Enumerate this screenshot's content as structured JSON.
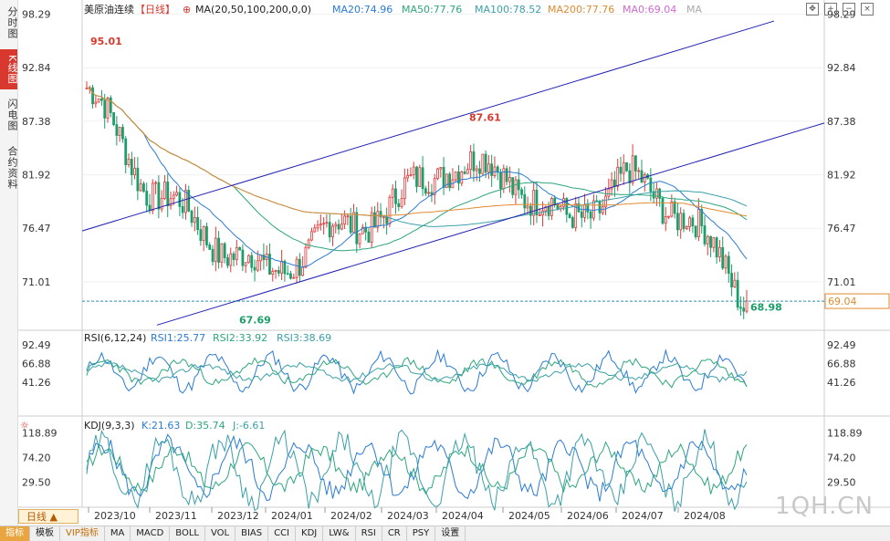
{
  "sidebar": {
    "tabs": [
      {
        "label": "分时图",
        "active": false
      },
      {
        "label": "K线图",
        "active": true
      },
      {
        "label": "闪电图",
        "active": false
      },
      {
        "label": "合约资料",
        "active": false
      }
    ]
  },
  "main_legend": {
    "symbol": "美原油连续",
    "period_tag": "【日线】",
    "ma_params": "MA(20,50,100,200,0,0)",
    "ma20": "MA20:74.96",
    "ma50": "MA50:77.76",
    "ma100": "MA100:78.52",
    "ma200": "MA200:77.76",
    "ma0": "MA0:69.04",
    "ma_extra": "MA"
  },
  "rsi_legend": {
    "title": "RSI(6,12,24)",
    "rsi1": "RSI1:25.77",
    "rsi2": "RSI2:33.92",
    "rsi3": "RSI3:38.69"
  },
  "kdj_legend": {
    "title": "KDJ(9,3,3)",
    "k": "K:21.63",
    "d": "D:35.74",
    "j": "J:-6.61"
  },
  "price_axis": [
    "98.29",
    "92.84",
    "87.38",
    "81.92",
    "76.47",
    "71.01"
  ],
  "rsi_axis": [
    "92.49",
    "66.88",
    "41.26"
  ],
  "kdj_axis": [
    "118.89",
    "74.20",
    "29.50"
  ],
  "last_price_label": "69.04",
  "annotations": {
    "high1": "95.01",
    "high2": "87.61",
    "low1": "67.69",
    "low2": "68.98"
  },
  "x_axis": [
    "2023/10",
    "2023/11",
    "2023/12",
    "2024/01",
    "2024/02",
    "2024/03",
    "2024/04",
    "2024/05",
    "2024/06",
    "2024/07",
    "2024/08"
  ],
  "period_button": "日线",
  "watermark": "1QH.CN",
  "bottom_tabs": [
    "指标",
    "模板",
    "VIP指标",
    "MA",
    "MACD",
    "BOLL",
    "VOL",
    "BIAS",
    "CCI",
    "KDJ",
    "LW&",
    "RSI",
    "CR",
    "PSY",
    "设置"
  ],
  "colors": {
    "up": "#e03a3a",
    "down": "#1a9e6a",
    "ma20": "#2a7bd6",
    "ma50": "#2ca77a",
    "ma100": "#3aa0a8",
    "ma200": "#e08a30",
    "channel": "#1f1fb4",
    "ref_line": "#2a8fb5"
  },
  "chart_data": {
    "type": "candlestick",
    "title": "美原油连续",
    "period": "daily",
    "y_range": [
      67.0,
      99.0
    ],
    "x_range": [
      "2023/09",
      "2024/08"
    ],
    "marked_points": [
      {
        "label": "95.01",
        "date": "2023/09",
        "price": 95.01
      },
      {
        "label": "87.61",
        "date": "2024/04",
        "price": 87.61
      },
      {
        "label": "67.69",
        "date": "2023/12",
        "price": 67.69
      },
      {
        "label": "68.98",
        "date": "2024/08",
        "price": 68.98
      }
    ],
    "monthly_closes": [
      {
        "month": "2023/09",
        "close": 90.8
      },
      {
        "month": "2023/10",
        "close": 81.0
      },
      {
        "month": "2023/11",
        "close": 75.9
      },
      {
        "month": "2023/12",
        "close": 71.6
      },
      {
        "month": "2024/01",
        "close": 75.8
      },
      {
        "month": "2024/02",
        "close": 78.3
      },
      {
        "month": "2024/03",
        "close": 83.2
      },
      {
        "month": "2024/04",
        "close": 81.9
      },
      {
        "month": "2024/05",
        "close": 76.9
      },
      {
        "month": "2024/06",
        "close": 81.5
      },
      {
        "month": "2024/07",
        "close": 77.9
      },
      {
        "month": "2024/08",
        "close": 69.0
      }
    ],
    "moving_averages": [
      {
        "name": "MA20",
        "value": 74.96
      },
      {
        "name": "MA50",
        "value": 77.76
      },
      {
        "name": "MA100",
        "value": 78.52
      },
      {
        "name": "MA200",
        "value": 77.76
      },
      {
        "name": "MA0",
        "value": 69.04
      }
    ],
    "indicators": {
      "RSI": {
        "RSI1": 25.77,
        "RSI2": 33.92,
        "RSI3": 38.69,
        "axis_ticks": [
          92.49,
          66.88,
          41.26
        ]
      },
      "KDJ": {
        "K": 21.63,
        "D": 35.74,
        "J": -6.61,
        "axis_ticks": [
          118.89,
          74.2,
          29.5
        ]
      }
    },
    "last_price": 69.04
  }
}
